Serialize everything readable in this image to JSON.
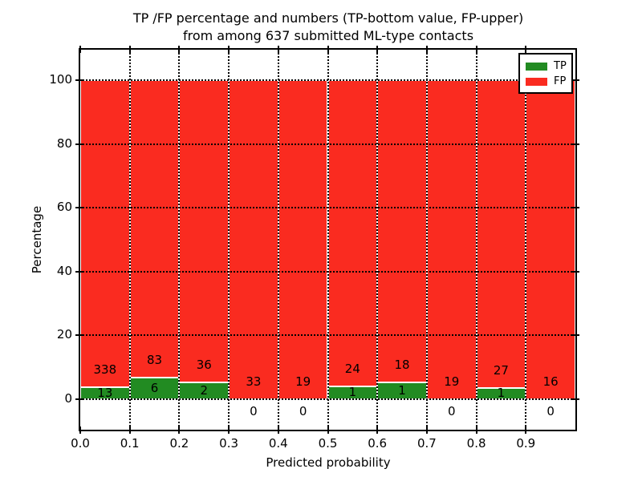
{
  "chart_data": {
    "type": "bar",
    "stacked": true,
    "title_line1": "TP /FP percentage and numbers (TP-bottom value, FP-upper)",
    "title_line2": "from among 637 submitted ML-type contacts",
    "total_contacts": 637,
    "xlabel": "Predicted probability",
    "ylabel": "Percentage",
    "xlim": [
      0.0,
      1.0
    ],
    "ylim": [
      -10,
      110
    ],
    "grid": true,
    "xtick_labels": [
      "0.0",
      "0.1",
      "0.2",
      "0.3",
      "0.4",
      "0.5",
      "0.6",
      "0.7",
      "0.8",
      "0.9"
    ],
    "yticks": [
      0,
      20,
      40,
      60,
      80,
      100
    ],
    "colors": {
      "tp": "#228b22",
      "fp": "#fa2b20"
    },
    "legend": {
      "position": "upper right",
      "entries": [
        {
          "label": "TP",
          "color_key": "tp"
        },
        {
          "label": "FP",
          "color_key": "fp"
        }
      ]
    },
    "bins": [
      {
        "x_start": 0.0,
        "x_end": 0.1,
        "tp": 13,
        "fp": 338,
        "tp_pct": 3.7,
        "fp_pct": 96.3
      },
      {
        "x_start": 0.1,
        "x_end": 0.2,
        "tp": 6,
        "fp": 83,
        "tp_pct": 6.74,
        "fp_pct": 93.26
      },
      {
        "x_start": 0.2,
        "x_end": 0.3,
        "tp": 2,
        "fp": 36,
        "tp_pct": 5.26,
        "fp_pct": 94.74
      },
      {
        "x_start": 0.3,
        "x_end": 0.4,
        "tp": 0,
        "fp": 33,
        "tp_pct": 0.0,
        "fp_pct": 100.0
      },
      {
        "x_start": 0.4,
        "x_end": 0.5,
        "tp": 0,
        "fp": 19,
        "tp_pct": 0.0,
        "fp_pct": 100.0
      },
      {
        "x_start": 0.5,
        "x_end": 0.6,
        "tp": 1,
        "fp": 24,
        "tp_pct": 4.0,
        "fp_pct": 96.0
      },
      {
        "x_start": 0.6,
        "x_end": 0.7,
        "tp": 1,
        "fp": 18,
        "tp_pct": 5.26,
        "fp_pct": 94.74
      },
      {
        "x_start": 0.7,
        "x_end": 0.8,
        "tp": 0,
        "fp": 19,
        "tp_pct": 0.0,
        "fp_pct": 100.0
      },
      {
        "x_start": 0.8,
        "x_end": 0.9,
        "tp": 1,
        "fp": 27,
        "tp_pct": 3.57,
        "fp_pct": 96.43
      },
      {
        "x_start": 0.9,
        "x_end": 1.0,
        "tp": 0,
        "fp": 16,
        "tp_pct": 0.0,
        "fp_pct": 100.0
      }
    ]
  }
}
